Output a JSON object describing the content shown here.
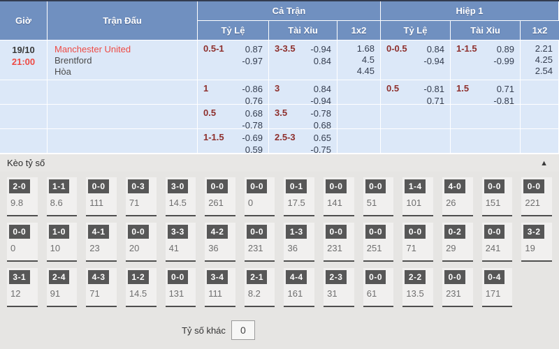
{
  "colors": {
    "header_blue": "#7090c0",
    "cell_blue": "#dce8f8",
    "line_maroon": "#8e2f2c",
    "highlight_red": "#ee4a44",
    "chip_dark": "#575757",
    "section_gray": "#e6e5e3"
  },
  "odds_table": {
    "headers": {
      "time": "Giờ",
      "match": "Trận Đấu",
      "full_match": "Cả Trận",
      "first_half": "Hiệp 1",
      "handicap": "Tỷ Lệ",
      "over_under": "Tài Xỉu",
      "one_x_two": "1x2"
    },
    "rows": [
      {
        "date": "19/10",
        "time": "21:00",
        "home": "Manchester United",
        "away": "Brentford",
        "draw": "Hòa",
        "ft_hdp": {
          "label": "0.5-1",
          "top": "0.87",
          "bottom": "-0.97"
        },
        "ft_ou": {
          "label": "3-3.5",
          "top": "-0.94",
          "bottom": "0.84"
        },
        "ft_1x2": [
          "1.68",
          "4.5",
          "4.45"
        ],
        "h1_hdp": {
          "label": "0-0.5",
          "top": "0.84",
          "bottom": "-0.94"
        },
        "h1_ou": {
          "label": "1-1.5",
          "top": "0.89",
          "bottom": "-0.99"
        },
        "h1_1x2": [
          "2.21",
          "4.25",
          "2.54"
        ]
      },
      {
        "ft_hdp": {
          "label": "1",
          "top": "-0.86",
          "bottom": "0.76"
        },
        "ft_ou": {
          "label": "3",
          "top": "0.84",
          "bottom": "-0.94"
        },
        "h1_hdp": {
          "label": "0.5",
          "top": "-0.81",
          "bottom": "0.71"
        },
        "h1_ou": {
          "label": "1.5",
          "top": "0.71",
          "bottom": "-0.81"
        }
      },
      {
        "ft_hdp": {
          "label": "0.5",
          "top": "0.68",
          "bottom": "-0.78"
        },
        "ft_ou": {
          "label": "3.5",
          "top": "-0.78",
          "bottom": "0.68"
        }
      },
      {
        "ft_hdp": {
          "label": "1-1.5",
          "top": "-0.69",
          "bottom": "0.59"
        },
        "ft_ou": {
          "label": "2.5-3",
          "top": "0.65",
          "bottom": "-0.75"
        }
      }
    ]
  },
  "score_section": {
    "title": "Kèo tỷ số",
    "collapse_icon": "▲",
    "rows": [
      [
        {
          "score": "2-0",
          "odds": "9.8"
        },
        {
          "score": "1-1",
          "odds": "8.6"
        },
        {
          "score": "0-0",
          "odds": "111"
        },
        {
          "score": "0-3",
          "odds": "71"
        },
        {
          "score": "3-0",
          "odds": "14.5"
        },
        {
          "score": "0-0",
          "odds": "261"
        },
        {
          "score": "0-0",
          "odds": "0"
        },
        {
          "score": "0-1",
          "odds": "17.5"
        },
        {
          "score": "0-0",
          "odds": "141"
        },
        {
          "score": "0-0",
          "odds": "51"
        },
        {
          "score": "1-4",
          "odds": "101"
        },
        {
          "score": "4-0",
          "odds": "26"
        },
        {
          "score": "0-0",
          "odds": "151"
        },
        {
          "score": "0-0",
          "odds": "221"
        }
      ],
      [
        {
          "score": "0-0",
          "odds": "0"
        },
        {
          "score": "1-0",
          "odds": "10"
        },
        {
          "score": "4-1",
          "odds": "23"
        },
        {
          "score": "0-0",
          "odds": "20"
        },
        {
          "score": "3-3",
          "odds": "41"
        },
        {
          "score": "4-2",
          "odds": "36"
        },
        {
          "score": "0-0",
          "odds": "231"
        },
        {
          "score": "1-3",
          "odds": "36"
        },
        {
          "score": "0-0",
          "odds": "231"
        },
        {
          "score": "0-0",
          "odds": "251"
        },
        {
          "score": "0-0",
          "odds": "71"
        },
        {
          "score": "0-2",
          "odds": "29"
        },
        {
          "score": "0-0",
          "odds": "241"
        },
        {
          "score": "3-2",
          "odds": "19"
        }
      ],
      [
        {
          "score": "3-1",
          "odds": "12"
        },
        {
          "score": "2-4",
          "odds": "91"
        },
        {
          "score": "4-3",
          "odds": "71"
        },
        {
          "score": "1-2",
          "odds": "14.5"
        },
        {
          "score": "0-0",
          "odds": "131"
        },
        {
          "score": "3-4",
          "odds": "111"
        },
        {
          "score": "2-1",
          "odds": "8.2"
        },
        {
          "score": "4-4",
          "odds": "161"
        },
        {
          "score": "2-3",
          "odds": "31"
        },
        {
          "score": "0-0",
          "odds": "61"
        },
        {
          "score": "2-2",
          "odds": "13.5"
        },
        {
          "score": "0-0",
          "odds": "231"
        },
        {
          "score": "0-4",
          "odds": "171"
        }
      ]
    ],
    "other_score_label": "Tỷ số khác",
    "other_score_value": "0"
  }
}
